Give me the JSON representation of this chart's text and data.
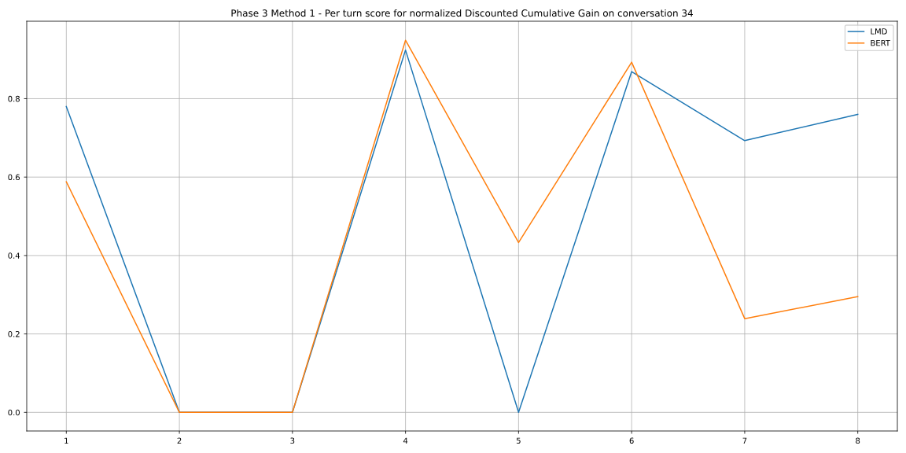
{
  "chart_data": {
    "type": "line",
    "title": "Phase 3 Method 1 - Per turn score for normalized Discounted Cumulative Gain on conversation 34",
    "x": [
      1,
      2,
      3,
      4,
      5,
      6,
      7,
      8
    ],
    "series": [
      {
        "name": "LMD",
        "color": "#1f77b4",
        "values": [
          0.78,
          0,
          0,
          0.924,
          0,
          0.869,
          0.693,
          0.76
        ]
      },
      {
        "name": "BERT",
        "color": "#ff7f0e",
        "values": [
          0.588,
          0,
          0,
          0.949,
          0.433,
          0.893,
          0.239,
          0.295
        ]
      }
    ],
    "xlim": [
      0.65,
      8.35
    ],
    "ylim": [
      -0.0475,
      0.9975
    ],
    "xticks": [
      1,
      2,
      3,
      4,
      5,
      6,
      7,
      8
    ],
    "yticks": [
      {
        "value": 0,
        "label": "0.0"
      },
      {
        "value": 0.2,
        "label": "0.2"
      },
      {
        "value": 0.4,
        "label": "0.4"
      },
      {
        "value": 0.6,
        "label": "0.6"
      },
      {
        "value": 0.8,
        "label": "0.8"
      }
    ],
    "grid": true,
    "legend": "top right",
    "marker": "none",
    "line_style": "solid"
  }
}
